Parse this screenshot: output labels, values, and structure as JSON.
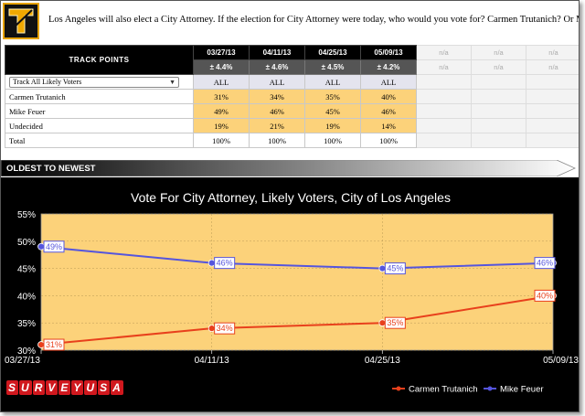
{
  "header": {
    "question": "Los Angeles will also elect a City Attorney. If the election for City Attorney were today, who would you vote for? Carmen Trutanich? Or Mike Feuer?"
  },
  "track": {
    "title": "TRACK POINTS",
    "dates": [
      "03/27/13",
      "04/11/13",
      "04/25/13",
      "05/09/13"
    ],
    "moe": [
      "± 4.4%",
      "± 4.6%",
      "± 4.5%",
      "± 4.2%"
    ],
    "na_label": "n/a",
    "population_select": "Track All Likely Voters",
    "population_values": [
      "ALL",
      "ALL",
      "ALL",
      "ALL"
    ],
    "rows": [
      {
        "label": "Carmen Trutanich",
        "values": [
          "31%",
          "34%",
          "35%",
          "40%"
        ]
      },
      {
        "label": "Mike Feuer",
        "values": [
          "49%",
          "46%",
          "45%",
          "46%"
        ]
      },
      {
        "label": "Undecided",
        "values": [
          "19%",
          "21%",
          "19%",
          "14%"
        ]
      },
      {
        "label": "Total",
        "values": [
          "100%",
          "100%",
          "100%",
          "100%"
        ]
      }
    ]
  },
  "banner": {
    "label": "OLDEST TO NEWEST"
  },
  "brand": {
    "name": "SURVEYUSA"
  },
  "colors": {
    "trutanich": "#e8401c",
    "feuer": "#5555dd",
    "plot_bg": "#fcd27a",
    "highlight": "#fcd27a"
  },
  "chart_data": {
    "type": "line",
    "title": "Vote For City Attorney, Likely Voters, City of Los Angeles",
    "categories": [
      "03/27/13",
      "04/11/13",
      "04/25/13",
      "05/09/13"
    ],
    "yticks": [
      "55%",
      "50%",
      "45%",
      "40%",
      "35%",
      "30%"
    ],
    "ylim": [
      30,
      55
    ],
    "series": [
      {
        "name": "Carmen Trutanich",
        "values": [
          31,
          34,
          35,
          40
        ],
        "labels": [
          "31%",
          "34%",
          "35%",
          "40%"
        ]
      },
      {
        "name": "Mike Feuer",
        "values": [
          49,
          46,
          45,
          46
        ],
        "labels": [
          "49%",
          "46%",
          "45%",
          "46%"
        ]
      }
    ],
    "legend": "bottom-right",
    "grid": true
  }
}
